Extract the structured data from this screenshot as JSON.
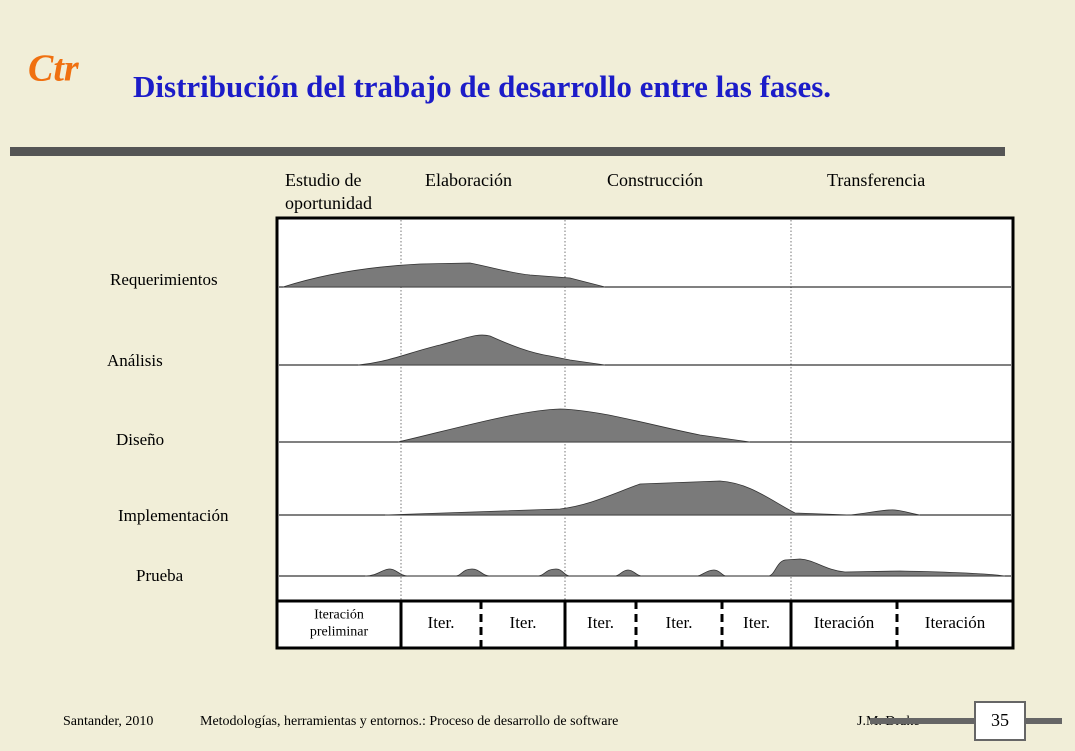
{
  "logo": "Ctr",
  "header": {
    "title": "Distribución del trabajo de desarrollo entre las fases."
  },
  "phases": [
    [
      "Estudio de",
      "oportunidad"
    ],
    [
      "Elaboración"
    ],
    [
      "Construcción"
    ],
    [
      "Transferencia"
    ]
  ],
  "workflows": [
    "Requerimientos",
    "Análisis",
    "Diseño",
    "Implementación",
    "Prueba"
  ],
  "iterations": [
    [
      "Iteración",
      "preliminar"
    ],
    [
      "Iter."
    ],
    [
      "Iter."
    ],
    [
      "Iter."
    ],
    [
      "Iter."
    ],
    [
      "Iter."
    ],
    [
      "Iteración"
    ],
    [
      "Iteración"
    ]
  ],
  "footer": {
    "place": "Santander, 2010",
    "course": "Metodologías, herramientas y entornos.: Proceso de desarrollo de software",
    "author": "J.M. Drake",
    "page": "35"
  }
}
